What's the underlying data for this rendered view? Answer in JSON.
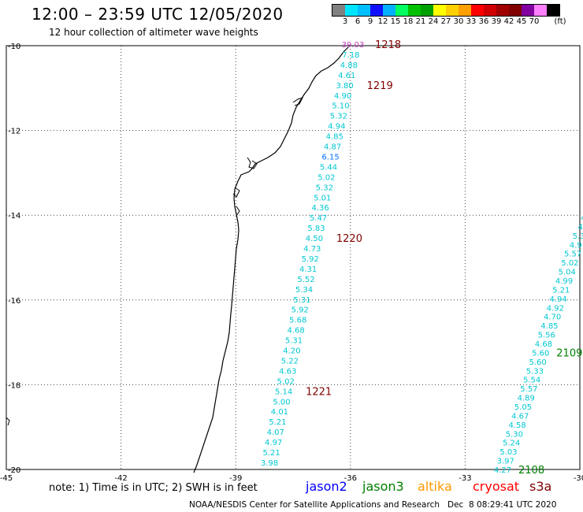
{
  "header": {
    "title": "12:00 – 23:59 UTC 12/05/2020",
    "subtitle": "12 hour collection of altimeter wave heights"
  },
  "legend": {
    "colors": [
      "#808080",
      "#00e5ff",
      "#00bfff",
      "#1010ff",
      "#00b0ff",
      "#00ff60",
      "#00c000",
      "#00a000",
      "#ffff00",
      "#ffd000",
      "#ffa000",
      "#ff0000",
      "#d00000",
      "#a00000",
      "#800000",
      "#8000a0",
      "#ff80ff",
      "#000000"
    ],
    "ticks": [
      "3",
      "6",
      "9",
      "12",
      "15",
      "18",
      "21",
      "24",
      "27",
      "30",
      "33",
      "36",
      "39",
      "42",
      "45",
      "70"
    ],
    "unit": "(ft)"
  },
  "map": {
    "x_axis": {
      "min": -45,
      "max": -30,
      "ticks": [
        "-45",
        "-42",
        "-39",
        "-36",
        "-33",
        "-30"
      ]
    },
    "y_axis": {
      "min": -20,
      "max": -10,
      "ticks": [
        "-10",
        "-12",
        "-14",
        "-16",
        "-18",
        "-20"
      ]
    },
    "tracks": [
      {
        "name": "pass-1",
        "values": [
          "39.03",
          "7.18",
          "4.88",
          "4.61",
          "3.80",
          "4.90",
          "5.10",
          "5.32",
          "4.94",
          "4.85",
          "4.87",
          "6.15",
          "5.44",
          "5.02",
          "5.32",
          "5.01",
          "4.36",
          "5.47",
          "5.83",
          "4.50",
          "4.73",
          "5.92",
          "4.31",
          "5.52",
          "5.34",
          "5.31",
          "5.92",
          "5.68",
          "4.68",
          "5.31",
          "4.20",
          "5.22",
          "4.63",
          "5.02",
          "5.14",
          "5.00",
          "4.01",
          "5.21",
          "4.07",
          "4.97",
          "5.21",
          "3.98"
        ],
        "value_colors": {
          "39.03": "#c040c0",
          "6.15": "#0070ff"
        },
        "time_labels": [
          {
            "text": "1218",
            "after_index": 0
          },
          {
            "text": "1219",
            "after_index": 4
          },
          {
            "text": "1220",
            "after_index": 19
          },
          {
            "text": "1221",
            "after_index": 34
          }
        ],
        "time_color": "#800000"
      },
      {
        "name": "pass-2",
        "values": [
          "4.27",
          "3.97",
          "5.03",
          "5.24",
          "5.30",
          "4.58",
          "4.67",
          "5.05",
          "4.89",
          "5.57",
          "5.54",
          "5.33",
          "5.60",
          "5.60",
          "4.68",
          "5.56",
          "4.85",
          "4.70",
          "4.92",
          "4.94",
          "5.21",
          "4.99",
          "5.04",
          "5.02",
          "5.57",
          "4.9",
          "5.3",
          "4.",
          "4."
        ],
        "time_labels": [
          {
            "text": "2108",
            "after_index": 0
          },
          {
            "text": "2109",
            "after_index": 13
          }
        ],
        "time_color": "#008000"
      }
    ]
  },
  "footer": {
    "note": "note: 1) Time is in UTC; 2) SWH is in feet",
    "satellites": [
      {
        "name": "jason2",
        "color": "#0000ff"
      },
      {
        "name": "jason3",
        "color": "#008000"
      },
      {
        "name": "altika",
        "color": "#ff9900"
      },
      {
        "name": "cryosat",
        "color": "#ff0000"
      },
      {
        "name": "s3a",
        "color": "#800000"
      }
    ],
    "credit": "NOAA/NESDIS Center for Satellite Applications and Research   Dec  8 08:29:41 UTC 2020"
  }
}
